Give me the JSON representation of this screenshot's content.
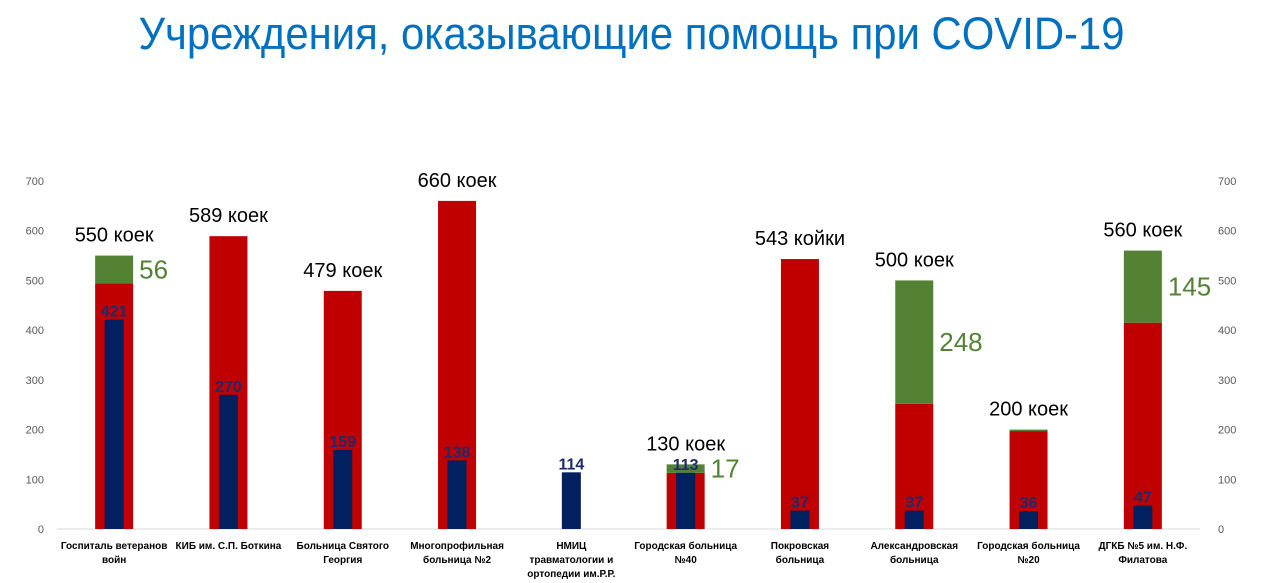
{
  "title": "Учреждения, оказывающие помощь при COVID-19",
  "colors": {
    "title": "#0070c0",
    "red": "#c00000",
    "green": "#548235",
    "navy": "#002060"
  },
  "chart_data": {
    "type": "bar",
    "ylim": [
      0,
      700
    ],
    "yticks": [
      "0",
      "100",
      "200",
      "300",
      "400",
      "500",
      "600",
      "700"
    ],
    "secondary_axis": true,
    "grid": false,
    "categories": [
      [
        "Госпиталь ветеранов",
        "войн"
      ],
      [
        "КИБ им. С.П. Боткина"
      ],
      [
        "Больница Святого",
        "Георгия"
      ],
      [
        "Многопрофильная",
        "больница №2"
      ],
      [
        "НМИЦ",
        "травматологии и",
        "ортопедии им.Р.Р."
      ],
      [
        "Городская больница",
        "№40"
      ],
      [
        "Покровская",
        "больница"
      ],
      [
        "Александровская",
        "больница"
      ],
      [
        "Городская больница",
        "№20"
      ],
      [
        "ДГКБ №5 им. Н.Ф.",
        "Филатова"
      ]
    ],
    "capacity_labels": [
      "550 коек",
      "589 коек",
      "479 коек",
      "660 коек",
      "",
      "130 коек",
      "543 койки",
      "500 коек",
      "200 коек",
      "560 коек"
    ],
    "series": [
      {
        "color": "#c00000",
        "values": [
          494,
          589,
          479,
          660,
          0,
          113,
          543,
          252,
          197,
          415
        ]
      },
      {
        "color": "#548235",
        "values": [
          56,
          0,
          0,
          0,
          0,
          17,
          0,
          248,
          3,
          145
        ]
      },
      {
        "color": "#002060",
        "values": [
          421,
          270,
          159,
          138,
          114,
          113,
          37,
          37,
          36,
          47
        ]
      }
    ],
    "green_labels": [
      "56",
      "",
      "",
      "",
      "",
      "17",
      "",
      "248",
      "",
      "145"
    ],
    "inner_labels": [
      "421",
      "270",
      "159",
      "138",
      "114",
      "113",
      "37",
      "37",
      "36",
      "47"
    ]
  }
}
